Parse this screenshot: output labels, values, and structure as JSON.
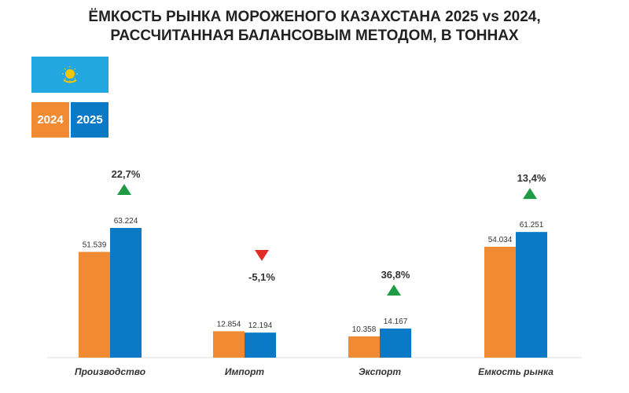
{
  "title_line1": "ЁМКОСТЬ РЫНКА МОРОЖЕНОГО КАЗАХСТАНА 2025 vs 2024,",
  "title_line2": "РАССЧИТАННАЯ БАЛАНСОВЫМ МЕТОДОМ, В ТОННАХ",
  "flag_icon": "kazakhstan-flag-icon",
  "colors": {
    "2024": "#f08a33",
    "2025": "#0a7ac6",
    "up": "#1f9a45",
    "down": "#e32b27",
    "flag": "#22a7e0",
    "sun": "#f5c400"
  },
  "chart_data": {
    "type": "bar",
    "categories": [
      "Производство",
      "Импорт",
      "Экспорт",
      "Емкость рынка"
    ],
    "series": [
      {
        "name": "2024",
        "values": [
          51539,
          12854,
          10358,
          54034
        ],
        "labels": [
          "51.539",
          "12.854",
          "10.358",
          "54.034"
        ]
      },
      {
        "name": "2025",
        "values": [
          63224,
          12194,
          14167,
          61251
        ],
        "labels": [
          "63.224",
          "12.194",
          "14.167",
          "61.251"
        ]
      }
    ],
    "changes": [
      {
        "label": "22,7%",
        "direction": "up"
      },
      {
        "label": "-5,1%",
        "direction": "down"
      },
      {
        "label": "36,8%",
        "direction": "up"
      },
      {
        "label": "13,4%",
        "direction": "up"
      }
    ],
    "legend": "top-left",
    "grid": false
  }
}
